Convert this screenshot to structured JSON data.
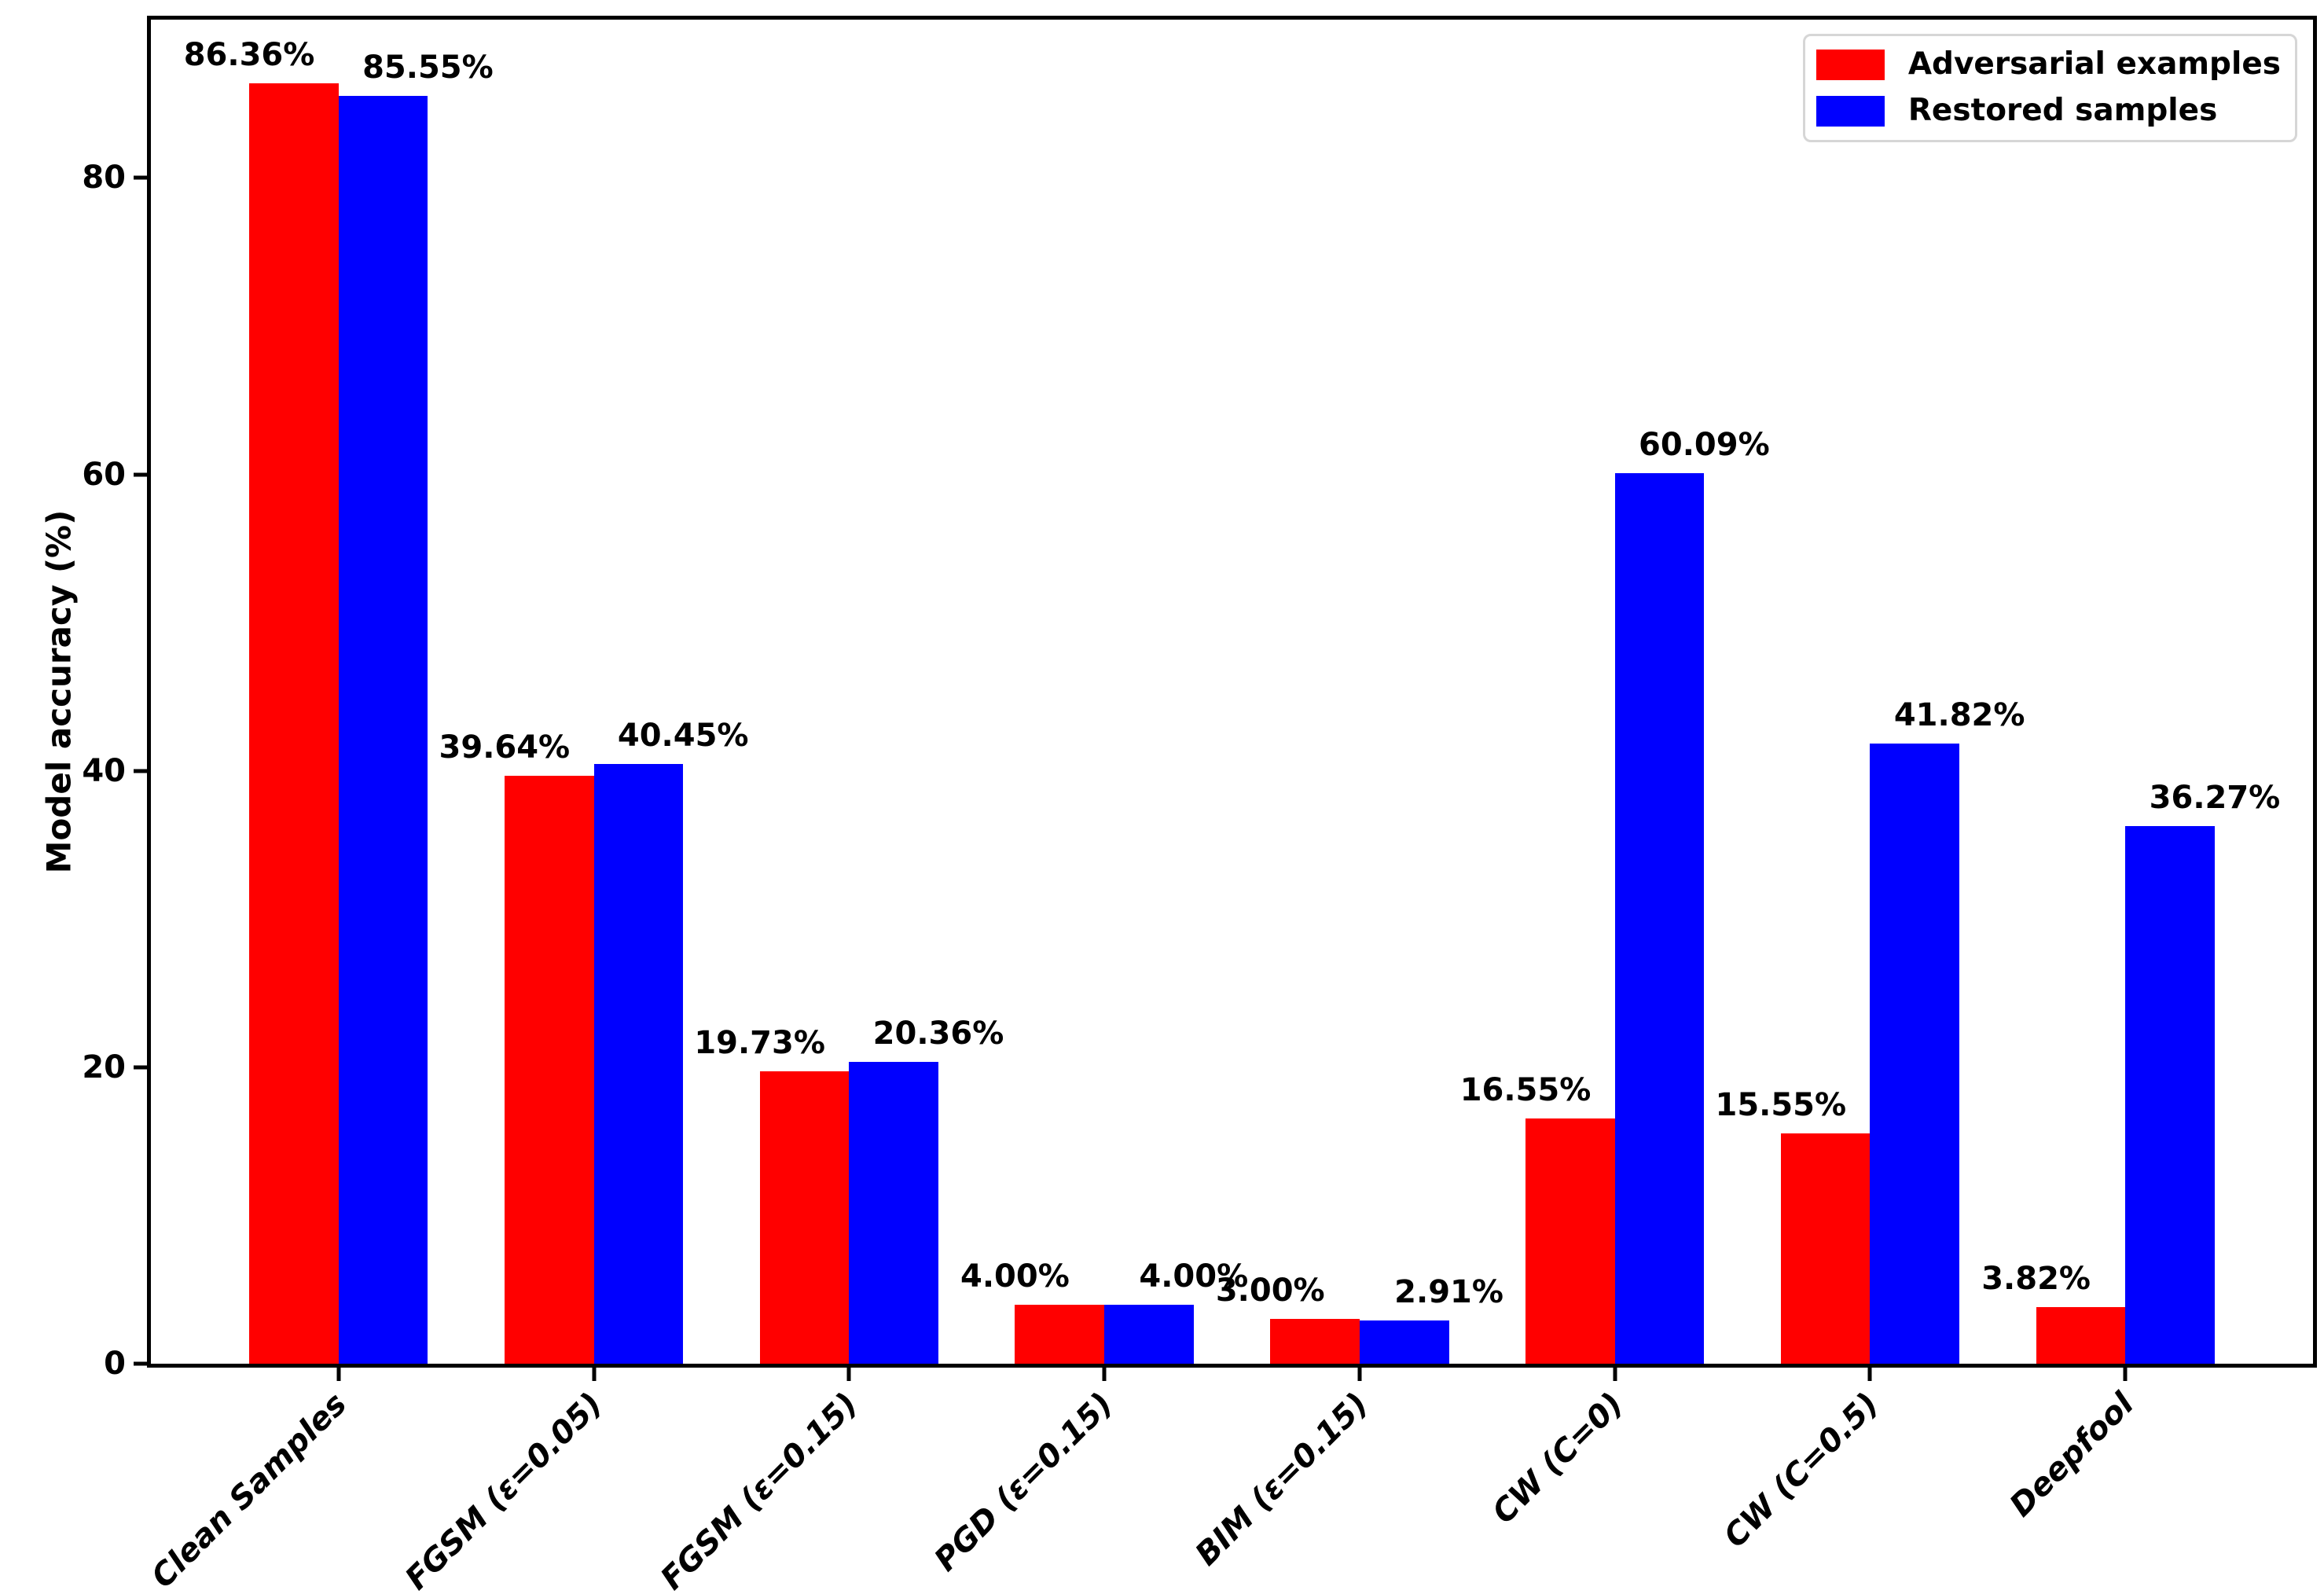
{
  "colors": {
    "adversarial": "#ff0000",
    "restored": "#0000ff",
    "axis": "#000000",
    "legend_border": "#d6d6d6",
    "background": "#ffffff"
  },
  "legend": [
    {
      "label": "Adversarial examples",
      "color": "#ff0000"
    },
    {
      "label": "Restored samples",
      "color": "#0000ff"
    }
  ],
  "chart_data": {
    "type": "bar",
    "title": "",
    "xlabel": "",
    "ylabel": "Model accuracy (%)",
    "categories": [
      "Clean Samples",
      "FGSM (ε=0.05)",
      "FGSM (ε=0.15)",
      "PGD (ε=0.15)",
      "BIM (ε=0.15)",
      "CW (C=0)",
      "CW (C=0.5)",
      "Deepfool"
    ],
    "series": [
      {
        "name": "Adversarial examples",
        "color": "#ff0000",
        "values": [
          86.36,
          39.64,
          19.73,
          4.0,
          3.0,
          16.55,
          15.55,
          3.82
        ],
        "labels": [
          "86.36%",
          "39.64%",
          "19.73%",
          "4.00%",
          "3.00%",
          "16.55%",
          "15.55%",
          "3.82%"
        ]
      },
      {
        "name": "Restored samples",
        "color": "#0000ff",
        "values": [
          85.55,
          40.45,
          20.36,
          4.0,
          2.91,
          60.09,
          41.82,
          36.27
        ],
        "labels": [
          "85.55%",
          "40.45%",
          "20.36%",
          "4.00%",
          "2.91%",
          "60.09%",
          "41.82%",
          "36.27%"
        ]
      }
    ],
    "y_ticks": [
      0,
      20,
      40,
      60,
      80
    ],
    "ylim": [
      0,
      90.678
    ],
    "bar_width": 0.35,
    "grid": false,
    "legend_position": "upper right",
    "x_tick_rotation": 45
  }
}
